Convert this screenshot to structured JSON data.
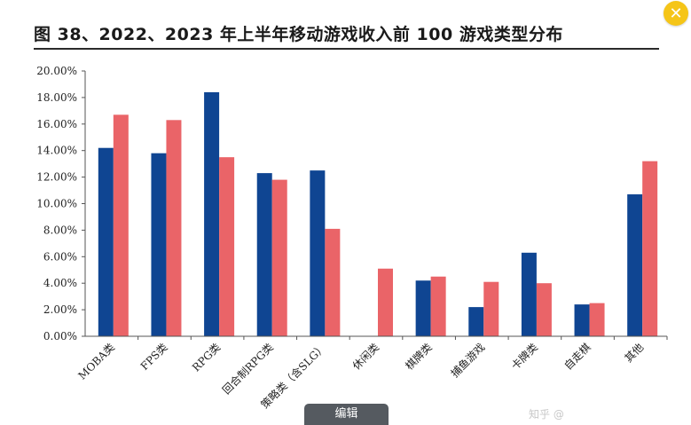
{
  "title": "图 38、2022、2023 年上半年移动游戏收入前 100 游戏类型分布",
  "close_icon": "close-icon",
  "edit_tab_label": "编辑",
  "watermark_text": "知乎 @",
  "colors": {
    "series_2022": "#0f4592",
    "series_2023": "#ea6468",
    "close_bg": "#f5c518"
  },
  "chart_data": {
    "type": "bar",
    "title": "图 38、2022、2023 年上半年移动游戏收入前 100 游戏类型分布",
    "categories": [
      "MOBA类",
      "FPS类",
      "RPG类",
      "回合制RPG类",
      "策略类（含SLG）",
      "休闲类",
      "棋牌类",
      "捕鱼游戏",
      "卡牌类",
      "自走棋",
      "其他"
    ],
    "series": [
      {
        "values": [
          14.2,
          13.8,
          18.4,
          12.3,
          12.5,
          0,
          4.2,
          2.2,
          6.3,
          2.4,
          10.7
        ]
      },
      {
        "values": [
          16.7,
          16.3,
          13.5,
          11.8,
          8.1,
          5.1,
          4.5,
          4.1,
          4.0,
          2.5,
          13.2
        ]
      }
    ],
    "yticks": [
      "0.00%",
      "2.00%",
      "4.00%",
      "6.00%",
      "8.00%",
      "10.00%",
      "12.00%",
      "14.00%",
      "16.00%",
      "18.00%",
      "20.00%"
    ],
    "ylim": [
      0,
      20
    ],
    "xlabel": "",
    "ylabel": "",
    "grid": false,
    "legend": "none"
  }
}
